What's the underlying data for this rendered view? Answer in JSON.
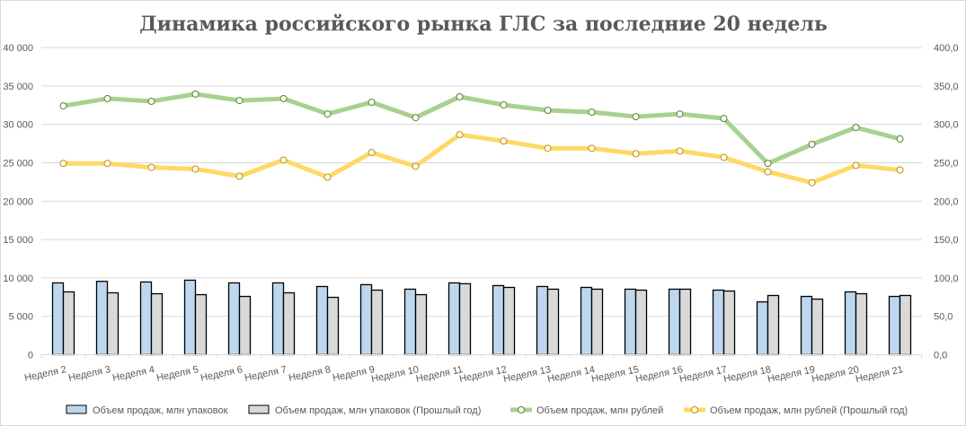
{
  "chart_data": {
    "type": "bar+line",
    "title": "Динамика российского рынка ГЛС за последние 20 недель",
    "categories": [
      "Неделя 2",
      "Неделя 3",
      "Неделя 4",
      "Неделя 5",
      "Неделя 6",
      "Неделя 7",
      "Неделя 8",
      "Неделя 9",
      "Неделя 10",
      "Неделя 11",
      "Неделя 12",
      "Неделя 13",
      "Неделя 14",
      "Неделя 15",
      "Неделя 16",
      "Неделя 17",
      "Неделя 18",
      "Неделя 19",
      "Неделя 20",
      "Неделя 21"
    ],
    "left_axis": {
      "range": [
        0,
        40000
      ],
      "ticks": [
        "0",
        "5 000",
        "10 000",
        "15 000",
        "20 000",
        "25 000",
        "30 000",
        "35 000",
        "40 000"
      ]
    },
    "right_axis": {
      "range": [
        0,
        400
      ],
      "ticks": [
        "0,0",
        "50,0",
        "100,0",
        "150,0",
        "200,0",
        "250,0",
        "300,0",
        "350,0",
        "400,0"
      ]
    },
    "grid": true,
    "legend_position": "bottom",
    "series": [
      {
        "name": "Объем продаж, млн упаковок",
        "type": "bar",
        "axis": "left",
        "color": "#bdd7ee",
        "values": [
          9350,
          9550,
          9470,
          9700,
          9350,
          9350,
          8880,
          9120,
          8530,
          9350,
          9000,
          8880,
          8760,
          8530,
          8530,
          8410,
          6880,
          7590,
          8180,
          7590
        ]
      },
      {
        "name": "Объем продаж, млн упаковок (Прошлый год)",
        "type": "bar",
        "axis": "left",
        "color": "#d9d9d9",
        "values": [
          8180,
          8060,
          7940,
          7820,
          7590,
          8060,
          7470,
          8410,
          7820,
          9240,
          8760,
          8530,
          8530,
          8410,
          8530,
          8290,
          7710,
          7240,
          7940,
          7710
        ]
      },
      {
        "name": "Объем продаж, млн рублей",
        "type": "line",
        "axis": "right",
        "color": "#a9d18e",
        "marker": "#548235",
        "values": [
          324,
          333.5,
          330,
          339.4,
          331,
          333.5,
          313.5,
          328.8,
          308.8,
          335.9,
          325.3,
          318.2,
          315.9,
          310,
          313.5,
          307.6,
          249,
          273.9,
          295.9,
          281
        ]
      },
      {
        "name": "Объем продаж, млн рублей (Прошлый год)",
        "type": "line",
        "axis": "right",
        "color": "#ffd966",
        "marker": "#bf9000",
        "values": [
          249,
          249,
          244,
          241.8,
          232.4,
          253.5,
          231.2,
          263.3,
          245.3,
          286.5,
          278.2,
          268.8,
          268.8,
          261.8,
          265.3,
          257,
          238.2,
          224,
          246.5,
          240.6
        ]
      }
    ]
  }
}
